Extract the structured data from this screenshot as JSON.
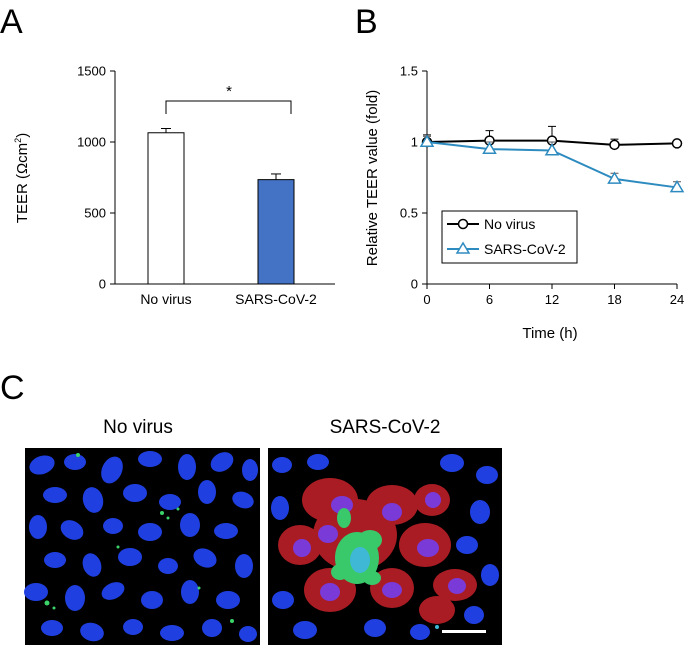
{
  "panels": {
    "a": "A",
    "b": "B",
    "c": "C"
  },
  "chart_data": [
    {
      "type": "bar",
      "ylabel": "TEER (Ωcm²)",
      "ylabel_main": "TEER (",
      "ylabel_unit": "Ωcm",
      "ylabel_sup": "2",
      "ylabel_close": ")",
      "ylim": [
        0,
        1500
      ],
      "yticks": [
        "0",
        "500",
        "1000",
        "1500"
      ],
      "categories": [
        "No virus",
        "SARS-CoV-2"
      ],
      "values": [
        1065,
        735
      ],
      "errors": [
        30,
        40
      ],
      "colors": [
        "#ffffff",
        "#4472c4"
      ],
      "significance": "*"
    },
    {
      "type": "line",
      "xlabel": "Time  (h)",
      "ylabel": "Relative TEER value (fold)",
      "x": [
        0,
        6,
        12,
        18,
        24
      ],
      "xticks": [
        "0",
        "6",
        "12",
        "18",
        "24"
      ],
      "ylim": [
        0,
        1.5
      ],
      "yticks": [
        "0",
        "0.5",
        "1",
        "1.5"
      ],
      "legend_position": "lower-left",
      "series": [
        {
          "name": "No virus",
          "values": [
            1.0,
            1.01,
            1.01,
            0.98,
            0.99
          ],
          "errors": [
            0.05,
            0.07,
            0.1,
            0.04,
            0.02
          ],
          "color": "#000000",
          "marker": "circle"
        },
        {
          "name": "SARS-CoV-2",
          "values": [
            1.0,
            0.95,
            0.94,
            0.74,
            0.68
          ],
          "errors": [
            0.04,
            0.05,
            0.06,
            0.04,
            0.04
          ],
          "color": "#2e8bc0",
          "marker": "triangle"
        }
      ]
    }
  ],
  "micrographs": [
    {
      "title": "No virus"
    },
    {
      "title": "SARS-CoV-2"
    }
  ]
}
